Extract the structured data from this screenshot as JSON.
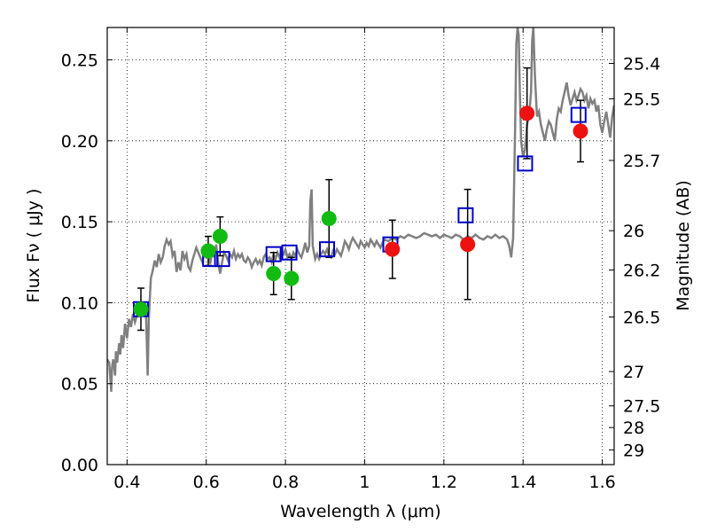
{
  "chart_data": {
    "type": "scatter",
    "title": "",
    "xlabel": "Wavelength  λ (μm)",
    "ylabel": "Flux  Fν  ( μJy )",
    "y2label": "Magnitude (AB)",
    "xlim": [
      0.35,
      1.63
    ],
    "ylim": [
      0.0,
      0.27
    ],
    "grid": true,
    "x_ticks": [
      0.4,
      0.6,
      0.8,
      1.0,
      1.2,
      1.4,
      1.6
    ],
    "x_tick_labels": [
      "0.4",
      "0.6",
      "0.8",
      "1",
      "1.2",
      "1.4",
      "1.6"
    ],
    "y_ticks": [
      0.0,
      0.05,
      0.1,
      0.15,
      0.2,
      0.25
    ],
    "y_tick_labels": [
      "0.00",
      "0.05",
      "0.10",
      "0.15",
      "0.20",
      "0.25"
    ],
    "y2_ticks": [
      {
        "flux": 0.2478,
        "label": "25.4"
      },
      {
        "flux": 0.2259,
        "label": "25.5"
      },
      {
        "flux": 0.1879,
        "label": "25.7"
      },
      {
        "flux": 0.1445,
        "label": "26"
      },
      {
        "flux": 0.1202,
        "label": "26.2"
      },
      {
        "flux": 0.0912,
        "label": "26.5"
      },
      {
        "flux": 0.0575,
        "label": "27"
      },
      {
        "flux": 0.0363,
        "label": "27.5"
      },
      {
        "flux": 0.0229,
        "label": "28"
      },
      {
        "flux": 0.0091,
        "label": "29"
      }
    ],
    "series": [
      {
        "kind": "line",
        "color": "#808080",
        "points": [
          [
            0.35,
            0.065
          ],
          [
            0.355,
            0.063
          ],
          [
            0.36,
            0.045
          ],
          [
            0.362,
            0.06
          ],
          [
            0.365,
            0.065
          ],
          [
            0.37,
            0.055
          ],
          [
            0.372,
            0.07
          ],
          [
            0.375,
            0.063
          ],
          [
            0.38,
            0.075
          ],
          [
            0.383,
            0.068
          ],
          [
            0.386,
            0.08
          ],
          [
            0.39,
            0.072
          ],
          [
            0.395,
            0.087
          ],
          [
            0.4,
            0.078
          ],
          [
            0.405,
            0.09
          ],
          [
            0.41,
            0.085
          ],
          [
            0.415,
            0.093
          ],
          [
            0.42,
            0.088
          ],
          [
            0.425,
            0.092
          ],
          [
            0.43,
            0.095
          ],
          [
            0.435,
            0.099
          ],
          [
            0.44,
            0.096
          ],
          [
            0.445,
            0.098
          ],
          [
            0.448,
            0.092
          ],
          [
            0.45,
            0.075
          ],
          [
            0.452,
            0.055
          ],
          [
            0.455,
            0.09
          ],
          [
            0.46,
            0.115
          ],
          [
            0.465,
            0.12
          ],
          [
            0.47,
            0.126
          ],
          [
            0.475,
            0.122
          ],
          [
            0.48,
            0.13
          ],
          [
            0.485,
            0.125
          ],
          [
            0.49,
            0.128
          ],
          [
            0.495,
            0.135
          ],
          [
            0.5,
            0.139
          ],
          [
            0.505,
            0.136
          ],
          [
            0.51,
            0.138
          ],
          [
            0.515,
            0.129
          ],
          [
            0.52,
            0.132
          ],
          [
            0.525,
            0.119
          ],
          [
            0.53,
            0.125
          ],
          [
            0.535,
            0.12
          ],
          [
            0.54,
            0.132
          ],
          [
            0.545,
            0.127
          ],
          [
            0.55,
            0.13
          ],
          [
            0.555,
            0.122
          ],
          [
            0.56,
            0.12
          ],
          [
            0.565,
            0.126
          ],
          [
            0.57,
            0.13
          ],
          [
            0.575,
            0.134
          ],
          [
            0.58,
            0.131
          ],
          [
            0.585,
            0.128
          ],
          [
            0.59,
            0.125
          ],
          [
            0.595,
            0.131
          ],
          [
            0.6,
            0.133
          ],
          [
            0.605,
            0.13
          ],
          [
            0.61,
            0.124
          ],
          [
            0.615,
            0.132
          ],
          [
            0.62,
            0.128
          ],
          [
            0.625,
            0.136
          ],
          [
            0.63,
            0.125
          ],
          [
            0.635,
            0.118
          ],
          [
            0.64,
            0.125
          ],
          [
            0.645,
            0.131
          ],
          [
            0.65,
            0.129
          ],
          [
            0.655,
            0.126
          ],
          [
            0.66,
            0.13
          ],
          [
            0.665,
            0.128
          ],
          [
            0.67,
            0.132
          ],
          [
            0.675,
            0.127
          ],
          [
            0.68,
            0.13
          ],
          [
            0.685,
            0.128
          ],
          [
            0.69,
            0.13
          ],
          [
            0.695,
            0.126
          ],
          [
            0.7,
            0.125
          ],
          [
            0.705,
            0.128
          ],
          [
            0.71,
            0.126
          ],
          [
            0.715,
            0.122
          ],
          [
            0.72,
            0.125
          ],
          [
            0.725,
            0.127
          ],
          [
            0.73,
            0.124
          ],
          [
            0.735,
            0.126
          ],
          [
            0.74,
            0.123
          ],
          [
            0.745,
            0.128
          ],
          [
            0.75,
            0.13
          ],
          [
            0.755,
            0.127
          ],
          [
            0.76,
            0.128
          ],
          [
            0.765,
            0.125
          ],
          [
            0.77,
            0.13
          ],
          [
            0.775,
            0.127
          ],
          [
            0.78,
            0.131
          ],
          [
            0.785,
            0.128
          ],
          [
            0.79,
            0.132
          ],
          [
            0.795,
            0.13
          ],
          [
            0.8,
            0.133
          ],
          [
            0.805,
            0.128
          ],
          [
            0.81,
            0.13
          ],
          [
            0.815,
            0.127
          ],
          [
            0.82,
            0.131
          ],
          [
            0.825,
            0.129
          ],
          [
            0.83,
            0.133
          ],
          [
            0.835,
            0.13
          ],
          [
            0.84,
            0.128
          ],
          [
            0.845,
            0.132
          ],
          [
            0.85,
            0.137
          ],
          [
            0.855,
            0.131
          ],
          [
            0.86,
            0.135
          ],
          [
            0.863,
            0.163
          ],
          [
            0.866,
            0.17
          ],
          [
            0.869,
            0.135
          ],
          [
            0.875,
            0.127
          ],
          [
            0.88,
            0.13
          ],
          [
            0.885,
            0.127
          ],
          [
            0.89,
            0.13
          ],
          [
            0.895,
            0.132
          ],
          [
            0.9,
            0.13
          ],
          [
            0.905,
            0.133
          ],
          [
            0.91,
            0.129
          ],
          [
            0.915,
            0.128
          ],
          [
            0.92,
            0.132
          ],
          [
            0.925,
            0.13
          ],
          [
            0.93,
            0.133
          ],
          [
            0.935,
            0.131
          ],
          [
            0.94,
            0.129
          ],
          [
            0.945,
            0.133
          ],
          [
            0.95,
            0.138
          ],
          [
            0.955,
            0.136
          ],
          [
            0.96,
            0.133
          ],
          [
            0.965,
            0.137
          ],
          [
            0.97,
            0.14
          ],
          [
            0.975,
            0.138
          ],
          [
            0.98,
            0.136
          ],
          [
            0.985,
            0.134
          ],
          [
            0.99,
            0.138
          ],
          [
            0.995,
            0.136
          ],
          [
            1.0,
            0.134
          ],
          [
            1.005,
            0.137
          ],
          [
            1.01,
            0.135
          ],
          [
            1.015,
            0.139
          ],
          [
            1.02,
            0.137
          ],
          [
            1.025,
            0.135
          ],
          [
            1.03,
            0.138
          ],
          [
            1.035,
            0.136
          ],
          [
            1.04,
            0.134
          ],
          [
            1.045,
            0.137
          ],
          [
            1.05,
            0.139
          ],
          [
            1.06,
            0.138
          ],
          [
            1.07,
            0.14
          ],
          [
            1.08,
            0.139
          ],
          [
            1.09,
            0.141
          ],
          [
            1.1,
            0.14
          ],
          [
            1.11,
            0.142
          ],
          [
            1.12,
            0.141
          ],
          [
            1.13,
            0.14
          ],
          [
            1.14,
            0.141
          ],
          [
            1.15,
            0.143
          ],
          [
            1.16,
            0.142
          ],
          [
            1.17,
            0.141
          ],
          [
            1.18,
            0.142
          ],
          [
            1.19,
            0.14
          ],
          [
            1.2,
            0.142
          ],
          [
            1.21,
            0.141
          ],
          [
            1.22,
            0.14
          ],
          [
            1.23,
            0.142
          ],
          [
            1.24,
            0.141
          ],
          [
            1.25,
            0.139
          ],
          [
            1.26,
            0.141
          ],
          [
            1.27,
            0.14
          ],
          [
            1.28,
            0.142
          ],
          [
            1.29,
            0.14
          ],
          [
            1.3,
            0.139
          ],
          [
            1.31,
            0.141
          ],
          [
            1.32,
            0.14
          ],
          [
            1.33,
            0.142
          ],
          [
            1.34,
            0.14
          ],
          [
            1.35,
            0.141
          ],
          [
            1.36,
            0.139
          ],
          [
            1.365,
            0.135
          ],
          [
            1.37,
            0.128
          ],
          [
            1.375,
            0.14
          ],
          [
            1.38,
            0.21
          ],
          [
            1.383,
            0.26
          ],
          [
            1.386,
            0.27
          ],
          [
            1.389,
            0.265
          ],
          [
            1.392,
            0.23
          ],
          [
            1.395,
            0.2
          ],
          [
            1.4,
            0.19
          ],
          [
            1.405,
            0.195
          ],
          [
            1.41,
            0.21
          ],
          [
            1.415,
            0.215
          ],
          [
            1.42,
            0.23
          ],
          [
            1.423,
            0.262
          ],
          [
            1.426,
            0.27
          ],
          [
            1.43,
            0.24
          ],
          [
            1.435,
            0.215
          ],
          [
            1.44,
            0.218
          ],
          [
            1.445,
            0.21
          ],
          [
            1.45,
            0.205
          ],
          [
            1.455,
            0.2
          ],
          [
            1.46,
            0.207
          ],
          [
            1.465,
            0.212
          ],
          [
            1.47,
            0.21
          ],
          [
            1.475,
            0.205
          ],
          [
            1.48,
            0.2
          ],
          [
            1.485,
            0.213
          ],
          [
            1.49,
            0.22
          ],
          [
            1.495,
            0.218
          ],
          [
            1.5,
            0.225
          ],
          [
            1.505,
            0.23
          ],
          [
            1.51,
            0.236
          ],
          [
            1.515,
            0.228
          ],
          [
            1.52,
            0.222
          ],
          [
            1.525,
            0.226
          ],
          [
            1.53,
            0.23
          ],
          [
            1.535,
            0.225
          ],
          [
            1.54,
            0.228
          ],
          [
            1.545,
            0.232
          ],
          [
            1.55,
            0.23
          ],
          [
            1.555,
            0.225
          ],
          [
            1.56,
            0.228
          ],
          [
            1.565,
            0.22
          ],
          [
            1.57,
            0.226
          ],
          [
            1.575,
            0.223
          ],
          [
            1.58,
            0.225
          ],
          [
            1.585,
            0.218
          ],
          [
            1.59,
            0.222
          ],
          [
            1.595,
            0.21
          ],
          [
            1.6,
            0.205
          ],
          [
            1.605,
            0.212
          ],
          [
            1.61,
            0.218
          ],
          [
            1.615,
            0.21
          ],
          [
            1.62,
            0.202
          ],
          [
            1.625,
            0.215
          ],
          [
            1.63,
            0.222
          ]
        ]
      },
      {
        "kind": "model-squares",
        "color": "#0000cc",
        "points": [
          [
            0.435,
            0.096
          ],
          [
            0.61,
            0.127
          ],
          [
            0.64,
            0.127
          ],
          [
            0.77,
            0.13
          ],
          [
            0.81,
            0.131
          ],
          [
            0.905,
            0.133
          ],
          [
            1.065,
            0.136
          ],
          [
            1.255,
            0.154
          ],
          [
            1.405,
            0.186
          ],
          [
            1.54,
            0.216
          ]
        ]
      },
      {
        "kind": "points-errorbars",
        "color": "#11bb11",
        "points": [
          {
            "x": 0.435,
            "y": 0.096,
            "err": 0.013
          },
          {
            "x": 0.605,
            "y": 0.132,
            "err": 0.009
          },
          {
            "x": 0.635,
            "y": 0.141,
            "err": 0.012
          },
          {
            "x": 0.77,
            "y": 0.118,
            "err": 0.013
          },
          {
            "x": 0.815,
            "y": 0.115,
            "err": 0.013
          },
          {
            "x": 0.91,
            "y": 0.152,
            "err": 0.024
          }
        ]
      },
      {
        "kind": "points-errorbars",
        "color": "#ee1111",
        "points": [
          {
            "x": 1.07,
            "y": 0.133,
            "err": 0.018
          },
          {
            "x": 1.26,
            "y": 0.136,
            "err": 0.034
          },
          {
            "x": 1.41,
            "y": 0.217,
            "err": 0.028
          },
          {
            "x": 1.545,
            "y": 0.206,
            "err": 0.019
          }
        ]
      }
    ]
  }
}
